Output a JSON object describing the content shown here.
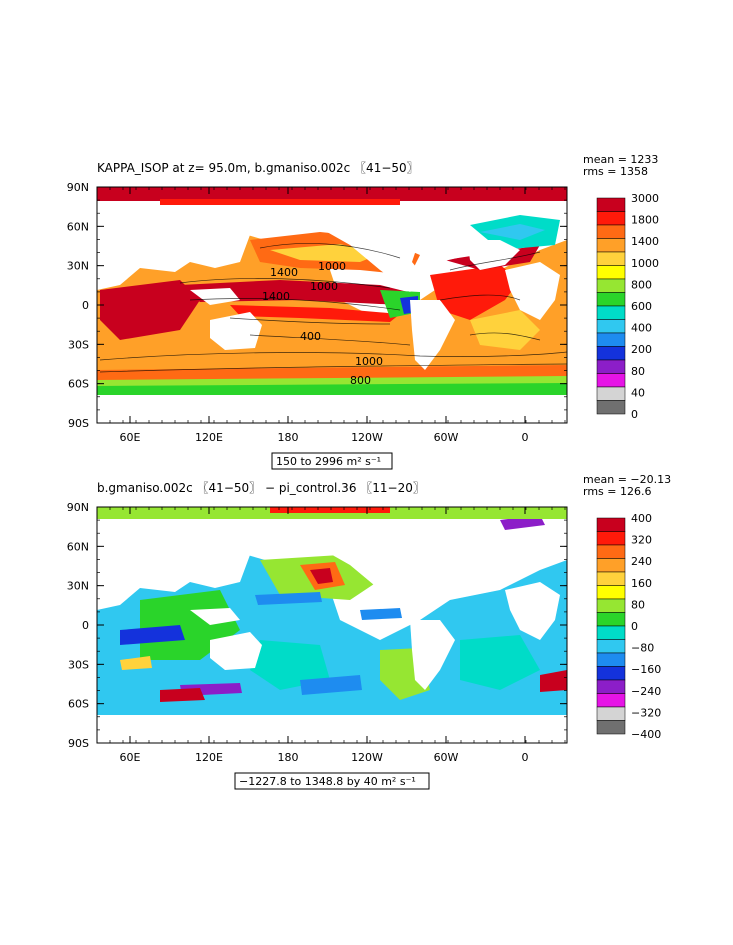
{
  "chart_data": [
    {
      "type": "heatmap",
      "title": "KAPPA_ISOP at z=  95.0m, b.gmaniso.002c 〖41−50〗",
      "stats": {
        "mean": "mean = 1233",
        "rms": "rms = 1358"
      },
      "range_label": "150 to 2996 m² s⁻¹",
      "x_ticks": [
        "60E",
        "120E",
        "180",
        "120W",
        "60W",
        "0"
      ],
      "y_ticks": [
        "90N",
        "60N",
        "30N",
        "0",
        "30S",
        "60S",
        "90S"
      ],
      "colorbar": {
        "labels": [
          "3000",
          "1800",
          "1400",
          "1000",
          "800",
          "600",
          "400",
          "200",
          "80",
          "40",
          "0"
        ],
        "colors": [
          "#c8001e",
          "#ff1a0a",
          "#ff6a14",
          "#ffa028",
          "#ffd23c",
          "#ffff00",
          "#96e632",
          "#2ad42a",
          "#00dcc8",
          "#30c8f0",
          "#1e8cf0",
          "#1432dc",
          "#8c1ec8",
          "#e614e6",
          "#d4d4d4",
          "#707070"
        ]
      },
      "contour_labels": [
        "1400",
        "1400",
        "1000",
        "1000",
        "1000",
        "400",
        "800"
      ]
    },
    {
      "type": "heatmap",
      "title": "b.gmaniso.002c 〖41−50〗 − pi_control.36 〖11−20〗",
      "stats": {
        "mean": "mean = −20.13",
        "rms": "rms = 126.6"
      },
      "range_label": "−1227.8 to 1348.8 by 40 m² s⁻¹",
      "x_ticks": [
        "60E",
        "120E",
        "180",
        "120W",
        "60W",
        "0"
      ],
      "y_ticks": [
        "90N",
        "60N",
        "30N",
        "0",
        "30S",
        "60S",
        "90S"
      ],
      "colorbar": {
        "labels": [
          "400",
          "320",
          "240",
          "160",
          "80",
          "0",
          "−80",
          "−160",
          "−240",
          "−320",
          "−400"
        ],
        "colors": [
          "#c8001e",
          "#ff1a0a",
          "#ff6a14",
          "#ffa028",
          "#ffd23c",
          "#ffff00",
          "#96e632",
          "#2ad42a",
          "#00dcc8",
          "#30c8f0",
          "#1e8cf0",
          "#1432dc",
          "#8c1ec8",
          "#e614e6",
          "#d4d4d4",
          "#707070"
        ]
      }
    }
  ]
}
